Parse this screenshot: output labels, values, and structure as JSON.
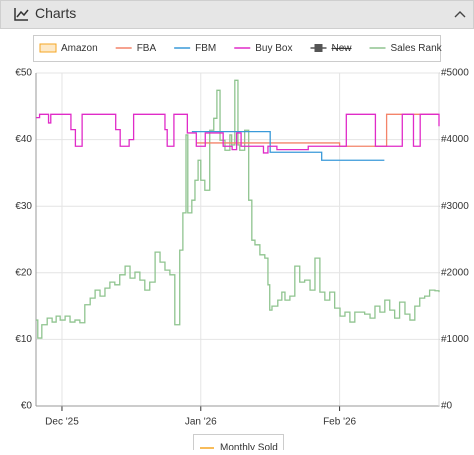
{
  "header": {
    "title": "Charts"
  },
  "chart_data": {
    "type": "line",
    "step": true,
    "grid": true,
    "xlim": [
      -5.8,
      84.2
    ],
    "xticks": [
      {
        "value": 0,
        "label": "Dec '25"
      },
      {
        "value": 31,
        "label": "Jan '26"
      },
      {
        "value": 62,
        "label": "Feb '26"
      }
    ],
    "ylim": [
      0,
      50
    ],
    "yticks": [
      {
        "value": 0,
        "label": "€0"
      },
      {
        "value": 10,
        "label": "€10"
      },
      {
        "value": 20,
        "label": "€20"
      },
      {
        "value": 30,
        "label": "€30"
      },
      {
        "value": 40,
        "label": "€40"
      },
      {
        "value": 50,
        "label": "€50"
      }
    ],
    "y2lim": [
      0,
      5000
    ],
    "y2ticks": [
      {
        "value": 0,
        "label": "#0"
      },
      {
        "value": 1000,
        "label": "#1000"
      },
      {
        "value": 2000,
        "label": "#2000"
      },
      {
        "value": 3000,
        "label": "#3000"
      },
      {
        "value": 4000,
        "label": "#4000"
      },
      {
        "value": 5000,
        "label": "#5000"
      }
    ],
    "series": [
      {
        "name": "Amazon",
        "color": "#f5a623",
        "fill": "#fde9c8",
        "x": [],
        "values": []
      },
      {
        "name": "FBA",
        "color": "#f4846a",
        "x": [
          30,
          62,
          72,
          72.5,
          84
        ],
        "values": [
          39.5,
          39,
          39,
          43.8,
          43.8
        ]
      },
      {
        "name": "FBM",
        "color": "#3a9ad9",
        "x": [
          29,
          46.5,
          58,
          72
        ],
        "values": [
          41.2,
          38.1,
          36.9,
          36.9
        ]
      },
      {
        "name": "Buy Box",
        "color": "#e02bc8",
        "x": [
          -5.8,
          -5,
          -3,
          -2.5,
          2,
          3,
          4.5,
          12,
          13,
          15,
          16,
          23,
          23.5,
          25,
          28,
          30,
          32,
          36,
          38,
          39,
          40,
          45,
          46,
          48,
          55,
          63,
          63.5,
          70,
          71,
          76,
          78.5,
          80,
          84.2
        ],
        "values": [
          43.3,
          43.8,
          42.5,
          43.8,
          41.5,
          39,
          43.8,
          41.5,
          39,
          40,
          43.8,
          41.5,
          39,
          43.8,
          41,
          39,
          41,
          39,
          38.5,
          41,
          39,
          38,
          39,
          38.5,
          39,
          39,
          43.8,
          39,
          39,
          43.8,
          39,
          43.8,
          42
        ]
      },
      {
        "name": "New",
        "color": "#555555",
        "hidden": true,
        "x": [],
        "values": []
      },
      {
        "name": "Sales Rank",
        "color": "#8fc48f",
        "axis": "y2",
        "x": [
          -5.8,
          -5.4,
          -4.5,
          -3.3,
          -2.2,
          -1.3,
          -0.4,
          0.7,
          1.8,
          2.9,
          4.0,
          5.1,
          6.3,
          7.4,
          8.5,
          9.6,
          10.7,
          11.8,
          12.9,
          14.1,
          15.2,
          16.3,
          17.4,
          18.5,
          19.6,
          20.8,
          21.9,
          23.0,
          24.1,
          25.2,
          26.3,
          27.0,
          27.7,
          28.1,
          29.0,
          29.7,
          30.4,
          31.0,
          31.9,
          33.0,
          33.9,
          34.6,
          35.3,
          36.4,
          37.5,
          37.9,
          38.6,
          39.3,
          39.7,
          40.8,
          41.7,
          42.4,
          43.1,
          44.2,
          45.3,
          46.0,
          46.4,
          46.9,
          48.2,
          49.1,
          49.8,
          50.9,
          52.0,
          53.1,
          54.2,
          55.4,
          56.5,
          57.6,
          58.7,
          59.8,
          60.9,
          62.1,
          63.2,
          64.3,
          65.4,
          66.5,
          67.6,
          68.8,
          69.9,
          71.0,
          72.1,
          73.2,
          74.3,
          75.4,
          76.6,
          77.7,
          78.8,
          79.9,
          81.0,
          82.1,
          83.3,
          84.2
        ],
        "values": [
          1290,
          1020,
          1220,
          1320,
          1260,
          1350,
          1290,
          1350,
          1260,
          1290,
          1250,
          1520,
          1620,
          1740,
          1650,
          1770,
          1860,
          1820,
          1970,
          2100,
          1920,
          2010,
          1890,
          1740,
          1860,
          2310,
          2160,
          2040,
          1970,
          1220,
          2340,
          2900,
          4070,
          2900,
          3090,
          3390,
          3690,
          3390,
          3240,
          4140,
          4320,
          4740,
          3990,
          3840,
          4070,
          3920,
          4890,
          3920,
          3840,
          4140,
          3090,
          2490,
          2420,
          2270,
          2220,
          1820,
          1440,
          1500,
          1590,
          1710,
          1590,
          1650,
          2100,
          1860,
          1890,
          1740,
          2220,
          1710,
          1590,
          1710,
          1470,
          1350,
          1410,
          1260,
          1410,
          1410,
          1380,
          1320,
          1500,
          1410,
          1590,
          1440,
          1320,
          1560,
          1380,
          1290,
          1500,
          1620,
          1650,
          1740,
          1730,
          1710
        ]
      }
    ],
    "footer_legend": {
      "name": "Monthly Sold",
      "color": "#f5a623"
    }
  }
}
